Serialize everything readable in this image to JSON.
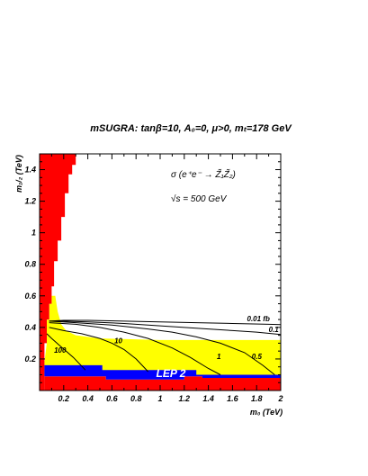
{
  "chart_data": {
    "type": "line",
    "title": "mSUGRA: tanβ=10, A₀=0, μ>0, mₜ=178 GeV",
    "xlabel": "m₀ (TeV)",
    "ylabel": "m₁/₂ (TeV)",
    "xlim": [
      0,
      2
    ],
    "ylim": [
      0,
      1.5
    ],
    "x_ticks": [
      "0.2",
      "0.4",
      "0.6",
      "0.8",
      "1",
      "1.2",
      "1.4",
      "1.6",
      "1.8",
      "2"
    ],
    "y_ticks": [
      "0.2",
      "0.4",
      "0.6",
      "0.8",
      "1",
      "1.2",
      "1.4"
    ],
    "annotation_process": "σ (e⁺e⁻ → Z̃₁Z̃₂)",
    "annotation_energy": "√s = 500 GeV",
    "excluded_label": "LEP 2",
    "colors": {
      "excluded_theory": "#ff0000",
      "lep_excluded": "#0000ff",
      "no_ewsb_region": "#ffff00"
    },
    "red_region": [
      [
        0,
        1.5
      ],
      [
        0.3,
        1.5
      ],
      [
        0.3,
        1.43
      ],
      [
        0.27,
        1.43
      ],
      [
        0.27,
        1.37
      ],
      [
        0.24,
        1.37
      ],
      [
        0.24,
        1.25
      ],
      [
        0.21,
        1.25
      ],
      [
        0.21,
        1.1
      ],
      [
        0.18,
        1.1
      ],
      [
        0.18,
        0.95
      ],
      [
        0.15,
        0.95
      ],
      [
        0.15,
        0.82
      ],
      [
        0.12,
        0.82
      ],
      [
        0.12,
        0.66
      ],
      [
        0.1,
        0.66
      ],
      [
        0.1,
        0.55
      ],
      [
        0.08,
        0.55
      ],
      [
        0.08,
        0.45
      ],
      [
        0.06,
        0.45
      ],
      [
        0.06,
        0.3
      ],
      [
        0.04,
        0.3
      ],
      [
        0.04,
        0.0
      ],
      [
        0,
        0.0
      ]
    ],
    "yellow_region": [
      [
        0.04,
        0.18
      ],
      [
        0.06,
        0.3
      ],
      [
        0.06,
        0.45
      ],
      [
        0.08,
        0.45
      ],
      [
        0.08,
        0.55
      ],
      [
        0.1,
        0.55
      ],
      [
        0.1,
        0.6
      ],
      [
        0.13,
        0.6
      ],
      [
        0.15,
        0.5
      ],
      [
        0.18,
        0.42
      ],
      [
        0.22,
        0.38
      ],
      [
        0.3,
        0.35
      ],
      [
        0.5,
        0.33
      ],
      [
        1.0,
        0.32
      ],
      [
        1.5,
        0.32
      ],
      [
        2,
        0.32
      ],
      [
        2,
        0.1
      ],
      [
        0.04,
        0.1
      ]
    ],
    "blue_region": [
      [
        0.04,
        0.09
      ],
      [
        0.55,
        0.09
      ],
      [
        0.55,
        0.07
      ],
      [
        1.2,
        0.07
      ],
      [
        1.2,
        0.09
      ],
      [
        1.35,
        0.09
      ],
      [
        1.35,
        0.08
      ],
      [
        2,
        0.08
      ],
      [
        2,
        0.1
      ],
      [
        1.3,
        0.1
      ],
      [
        1.3,
        0.13
      ],
      [
        0.52,
        0.13
      ],
      [
        0.52,
        0.16
      ],
      [
        0.04,
        0.16
      ]
    ],
    "red_bottom_strip": [
      [
        0.04,
        0.0
      ],
      [
        2,
        0.0
      ],
      [
        2,
        0.08
      ],
      [
        1.35,
        0.08
      ],
      [
        1.35,
        0.09
      ],
      [
        1.2,
        0.09
      ],
      [
        1.2,
        0.07
      ],
      [
        0.55,
        0.07
      ],
      [
        0.55,
        0.09
      ],
      [
        0.04,
        0.09
      ]
    ],
    "series": [
      {
        "name": "0.01 fb",
        "label_at": [
          1.72,
          0.44
        ],
        "x": [
          0.08,
          0.2,
          0.4,
          0.7,
          1.0,
          1.3,
          1.6,
          1.9,
          2.0
        ],
        "y": [
          0.44,
          0.445,
          0.445,
          0.44,
          0.435,
          0.43,
          0.425,
          0.42,
          0.418
        ]
      },
      {
        "name": "0.1",
        "label_at": [
          1.9,
          0.37
        ],
        "x": [
          0.08,
          0.2,
          0.4,
          0.7,
          1.0,
          1.2,
          1.4,
          1.6,
          1.8,
          2.0
        ],
        "y": [
          0.44,
          0.44,
          0.435,
          0.425,
          0.41,
          0.4,
          0.39,
          0.38,
          0.37,
          0.355
        ]
      },
      {
        "name": "0.5",
        "label_at": [
          1.76,
          0.2
        ],
        "x": [
          0.08,
          0.3,
          0.6,
          0.9,
          1.1,
          1.3,
          1.5,
          1.7,
          1.85,
          1.95
        ],
        "y": [
          0.44,
          0.43,
          0.415,
          0.39,
          0.37,
          0.34,
          0.3,
          0.24,
          0.16,
          0.1
        ]
      },
      {
        "name": "1",
        "label_at": [
          1.47,
          0.2
        ],
        "x": [
          0.08,
          0.3,
          0.5,
          0.7,
          0.9,
          1.1,
          1.25,
          1.4,
          1.5
        ],
        "y": [
          0.43,
          0.42,
          0.4,
          0.37,
          0.33,
          0.27,
          0.21,
          0.14,
          0.1
        ]
      },
      {
        "name": "10",
        "label_at": [
          0.62,
          0.3
        ],
        "x": [
          0.08,
          0.2,
          0.35,
          0.5,
          0.6,
          0.7,
          0.8,
          0.9
        ],
        "y": [
          0.4,
          0.38,
          0.36,
          0.33,
          0.3,
          0.26,
          0.2,
          0.12
        ]
      },
      {
        "name": "100",
        "label_at": [
          0.12,
          0.24
        ],
        "x": [
          0.06,
          0.1,
          0.16,
          0.22,
          0.28,
          0.33,
          0.38
        ],
        "y": [
          0.36,
          0.33,
          0.29,
          0.25,
          0.21,
          0.17,
          0.13
        ]
      }
    ]
  }
}
